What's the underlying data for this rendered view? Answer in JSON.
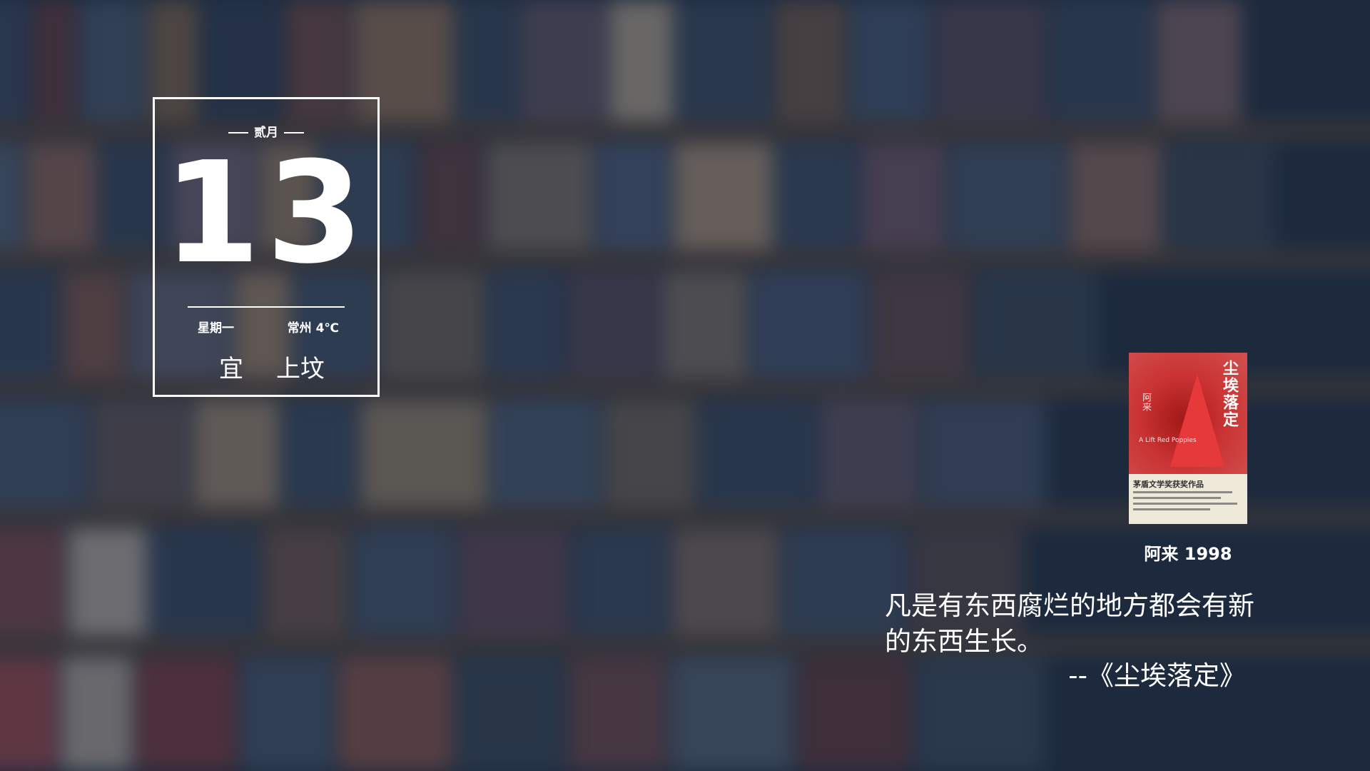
{
  "calendar": {
    "month": "贰月",
    "day": "13",
    "weekday": "星期一",
    "weather": "常州 4℃",
    "yi": "宜",
    "activity": "上坟"
  },
  "book": {
    "cover_title": "尘埃落定",
    "cover_author": "阿来",
    "cover_subtitle": "A Lift Red Poppies",
    "cover_award": "茅盾文学奖获奖作品",
    "caption": "阿来 1998"
  },
  "quote": {
    "text": "凡是有东西腐烂的地方都会有新的东西生长。",
    "source": "--《尘埃落定》"
  },
  "colors": {
    "overlay": "#1c283c",
    "cover_red": "#c62a2a",
    "text": "#ffffff"
  }
}
